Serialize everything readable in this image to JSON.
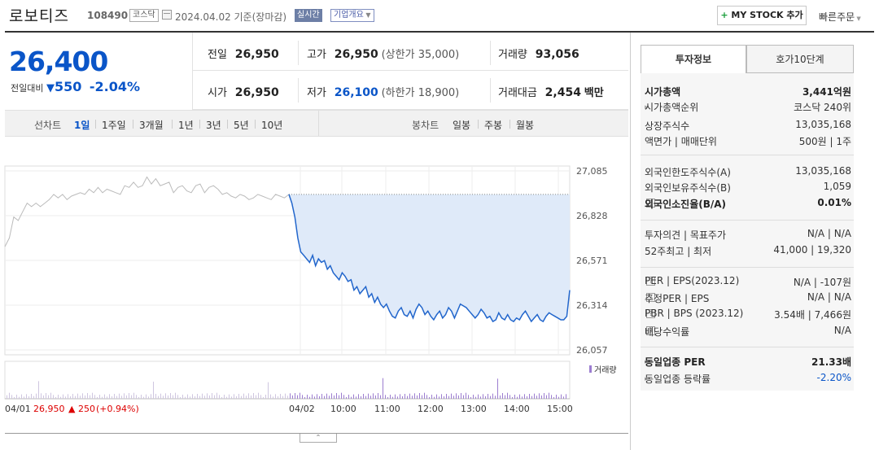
{
  "header": {
    "stock_name": "로보티즈",
    "stock_code": "108490",
    "market_badge": "코스닥",
    "date_text": "2024.04.02 기준(장마감)",
    "realtime_badge": "실시간",
    "company_badge": "기업개요",
    "mystock_label": "MY STOCK 추가",
    "quick_order": "빠른주문"
  },
  "summary": {
    "price": "26,400",
    "change_label": "전일대비",
    "change_value": "550",
    "change_pct": "-2.04%",
    "prev_close_label": "전일",
    "prev_close": "26,950",
    "open_label": "시가",
    "open": "26,950",
    "high_label": "고가",
    "high": "26,950",
    "upper_limit": "(상한가 35,000)",
    "low_label": "저가",
    "low": "26,100",
    "lower_limit": "(하한가 18,900)",
    "volume_label": "거래량",
    "volume": "93,056",
    "amount_label": "거래대금",
    "amount": "2,454",
    "amount_unit": "백만"
  },
  "chart_tabs": {
    "line_label": "선차트",
    "periods": [
      "1일",
      "1주일",
      "3개월",
      "1년",
      "3년",
      "5년",
      "10년"
    ],
    "active_period": "1일",
    "candle_label": "봉차트",
    "candle_periods": [
      "일봉",
      "주봉",
      "월봉"
    ]
  },
  "chart_data": {
    "type": "line",
    "y_ticks": [
      "27,085",
      "26,828",
      "26,571",
      "26,314",
      "26,057"
    ],
    "ylim": [
      26057,
      27085
    ],
    "x_ticks": [
      "04/01",
      "04/02",
      "10:00",
      "11:00",
      "12:00",
      "13:00",
      "14:00",
      "15:00"
    ],
    "volume_legend": "거래량",
    "prev_day_info": {
      "date": "04/01",
      "price": "26,950",
      "change": "▲ 250",
      "pct": "(+0.94%)"
    },
    "prev_day_series": {
      "name": "04/01",
      "values": [
        26650,
        26700,
        26820,
        26800,
        26850,
        26900,
        26880,
        26900,
        26880,
        26900,
        26920,
        26950,
        26930,
        26950,
        26920,
        26940,
        26950,
        26960,
        26950,
        26980,
        26960,
        26990,
        26960,
        26980,
        26970,
        26960,
        26950,
        27000,
        26990,
        27020,
        26990,
        27000,
        27050,
        27010,
        27040,
        27000,
        27010,
        27020,
        26960,
        26990,
        27000,
        26970,
        26960,
        27000,
        27010,
        26960,
        26990,
        27000,
        26980,
        26950,
        26960,
        26940,
        26930,
        26950,
        26940,
        26920,
        26930,
        26950,
        26940,
        26930,
        26920,
        26950,
        26940,
        26930,
        26950
      ]
    },
    "today_series": {
      "name": "04/02",
      "values": [
        26950,
        26900,
        26820,
        26700,
        26620,
        26600,
        26580,
        26560,
        26600,
        26540,
        26580,
        26560,
        26570,
        26520,
        26540,
        26500,
        26480,
        26460,
        26500,
        26480,
        26450,
        26460,
        26400,
        26420,
        26380,
        26400,
        26420,
        26360,
        26380,
        26330,
        26360,
        26320,
        26300,
        26320,
        26280,
        26250,
        26240,
        26280,
        26300,
        26260,
        26250,
        26280,
        26240,
        26290,
        26320,
        26300,
        26260,
        26280,
        26250,
        26230,
        26260,
        26280,
        26240,
        26260,
        26300,
        26280,
        26240,
        26280,
        26320,
        26310,
        26300,
        26280,
        26260,
        26240,
        26260,
        26290,
        26270,
        26240,
        26250,
        26220,
        26230,
        26270,
        26240,
        26230,
        26260,
        26230,
        26220,
        26240,
        26230,
        26260,
        26280,
        26250,
        26220,
        26240,
        26260,
        26230,
        26220,
        26250,
        26270,
        26260,
        26250,
        26240,
        26230,
        26230,
        26250,
        26400
      ]
    }
  },
  "right_panel": {
    "tabs": [
      "투자정보",
      "호가10단계"
    ],
    "rows": [
      {
        "label": "시가총액",
        "value": "3,441억원",
        "bold": true
      },
      {
        "label": "시가총액순위",
        "value": "코스닥 240위",
        "arrow": true
      },
      {
        "label": "상장주식수",
        "value": "13,035,168"
      },
      {
        "label": "액면가 | 매매단위",
        "value": "500원 | 1주"
      },
      {
        "label": "외국인한도주식수(A)",
        "value": "13,035,168"
      },
      {
        "label": "외국인보유주식수(B)",
        "value": "1,059"
      },
      {
        "label": "외국인소진율(B/A)",
        "value": "0.01%",
        "bold": true,
        "info": true
      },
      {
        "label": "투자의견 | 목표주가",
        "value": "N/A | N/A"
      },
      {
        "label": "52주최고 | 최저",
        "value": "41,000 | 19,320"
      },
      {
        "label": "PER | EPS(2023.12)",
        "value": "N/A | -107원",
        "info": true
      },
      {
        "label": "추정PER | EPS",
        "value": "N/A | N/A",
        "info": true
      },
      {
        "label": "PBR | BPS (2023.12)",
        "value": "3.54배 | 7,466원",
        "info": true
      },
      {
        "label": "배당수익률",
        "value": "N/A",
        "info": true
      },
      {
        "label": "동일업종 PER",
        "value": "21.33배",
        "bold": true,
        "arrow": true
      },
      {
        "label": "동일업종 등락률",
        "value": "-2.20%",
        "arrow": true,
        "blue": true
      }
    ]
  }
}
